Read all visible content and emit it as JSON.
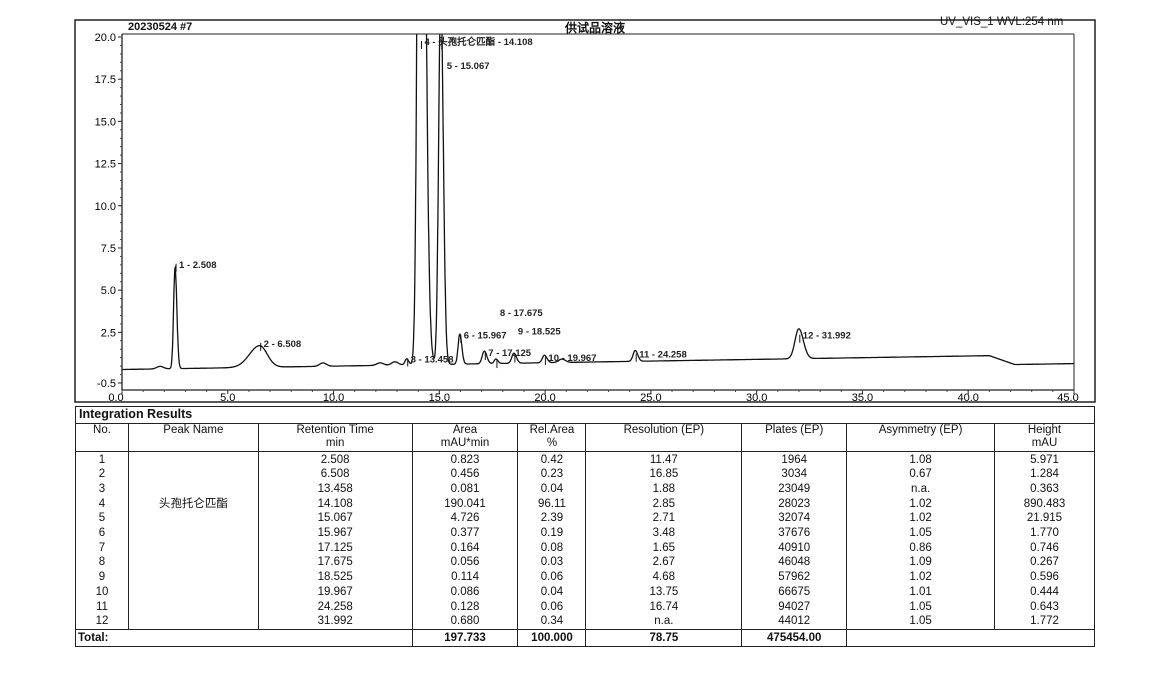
{
  "header": {
    "injection": "20230524 #7",
    "sample": "供试品溶液",
    "detector": "UV_VIS_1 WVL:254 nm"
  },
  "chart_data": {
    "type": "line",
    "xlim": [
      0,
      45
    ],
    "ylim": [
      -0.5,
      20
    ],
    "x_ticks": [
      "0.0",
      "5.0",
      "10.0",
      "15.0",
      "20.0",
      "25.0",
      "30.0",
      "35.0",
      "40.0",
      "45.0"
    ],
    "x_tick_values": [
      0,
      5,
      10,
      15,
      20,
      25,
      30,
      35,
      40,
      45
    ],
    "y_ticks": [
      "20.0",
      "17.5",
      "15.0",
      "12.5",
      "10.0",
      "7.5",
      "5.0",
      "2.5",
      "-0.5"
    ],
    "y_tick_values": [
      20,
      17.5,
      15,
      12.5,
      10,
      7.5,
      5,
      2.5,
      -0.5
    ],
    "grid": false,
    "color": "#111111",
    "peaks": [
      {
        "no": 1,
        "rt": 2.508,
        "height": 5.971,
        "label": "1 - 2.508"
      },
      {
        "no": 2,
        "rt": 6.508,
        "height": 1.284,
        "label": "2 - 6.508"
      },
      {
        "no": 3,
        "rt": 13.458,
        "height": 0.363,
        "label": "3 - 13.458"
      },
      {
        "no": 4,
        "rt": 14.108,
        "height": 890.483,
        "label": "4 - 头孢托仑匹酯 - 14.108"
      },
      {
        "no": 5,
        "rt": 15.067,
        "height": 21.915,
        "label": "5 - 15.067"
      },
      {
        "no": 6,
        "rt": 15.967,
        "height": 1.77,
        "label": "6 - 15.967"
      },
      {
        "no": 7,
        "rt": 17.125,
        "height": 0.746,
        "label": "7 - 17.125"
      },
      {
        "no": 8,
        "rt": 17.675,
        "height": 0.267,
        "label": "8 - 17.675"
      },
      {
        "no": 9,
        "rt": 18.525,
        "height": 0.596,
        "label": "9 - 18.525"
      },
      {
        "no": 10,
        "rt": 19.967,
        "height": 0.444,
        "label": "10 - 19.967"
      },
      {
        "no": 11,
        "rt": 24.258,
        "height": 0.643,
        "label": "11 - 24.258"
      },
      {
        "no": 12,
        "rt": 31.992,
        "height": 1.772,
        "label": "12 - 31.992"
      }
    ]
  },
  "table": {
    "title": "Integration Results",
    "headers": [
      [
        "No.",
        ""
      ],
      [
        "Peak Name",
        ""
      ],
      [
        "Retention Time",
        "min"
      ],
      [
        "Area",
        "mAU*min"
      ],
      [
        "Rel.Area",
        "%"
      ],
      [
        "Resolution (EP)",
        ""
      ],
      [
        "Plates (EP)",
        ""
      ],
      [
        "Asymmetry (EP)",
        ""
      ],
      [
        "Height",
        "mAU"
      ]
    ],
    "rows": [
      [
        "1",
        "",
        "2.508",
        "0.823",
        "0.42",
        "11.47",
        "1964",
        "1.08",
        "5.971"
      ],
      [
        "2",
        "",
        "6.508",
        "0.456",
        "0.23",
        "16.85",
        "3034",
        "0.67",
        "1.284"
      ],
      [
        "3",
        "",
        "13.458",
        "0.081",
        "0.04",
        "1.88",
        "23049",
        "n.a.",
        "0.363"
      ],
      [
        "4",
        "头孢托仑匹酯",
        "14.108",
        "190.041",
        "96.11",
        "2.85",
        "28023",
        "1.02",
        "890.483"
      ],
      [
        "5",
        "",
        "15.067",
        "4.726",
        "2.39",
        "2.71",
        "32074",
        "1.02",
        "21.915"
      ],
      [
        "6",
        "",
        "15.967",
        "0.377",
        "0.19",
        "3.48",
        "37676",
        "1.05",
        "1.770"
      ],
      [
        "7",
        "",
        "17.125",
        "0.164",
        "0.08",
        "1.65",
        "40910",
        "0.86",
        "0.746"
      ],
      [
        "8",
        "",
        "17.675",
        "0.056",
        "0.03",
        "2.67",
        "46048",
        "1.09",
        "0.267"
      ],
      [
        "9",
        "",
        "18.525",
        "0.114",
        "0.06",
        "4.68",
        "57962",
        "1.02",
        "0.596"
      ],
      [
        "10",
        "",
        "19.967",
        "0.086",
        "0.04",
        "13.75",
        "66675",
        "1.01",
        "0.444"
      ],
      [
        "11",
        "",
        "24.258",
        "0.128",
        "0.06",
        "16.74",
        "94027",
        "1.05",
        "0.643"
      ],
      [
        "12",
        "",
        "31.992",
        "0.680",
        "0.34",
        "n.a.",
        "44012",
        "1.05",
        "1.772"
      ]
    ],
    "total": {
      "label": "Total:",
      "area": "197.733",
      "rel_area": "100.000",
      "resolution": "78.75",
      "plates": "475454.00"
    }
  }
}
